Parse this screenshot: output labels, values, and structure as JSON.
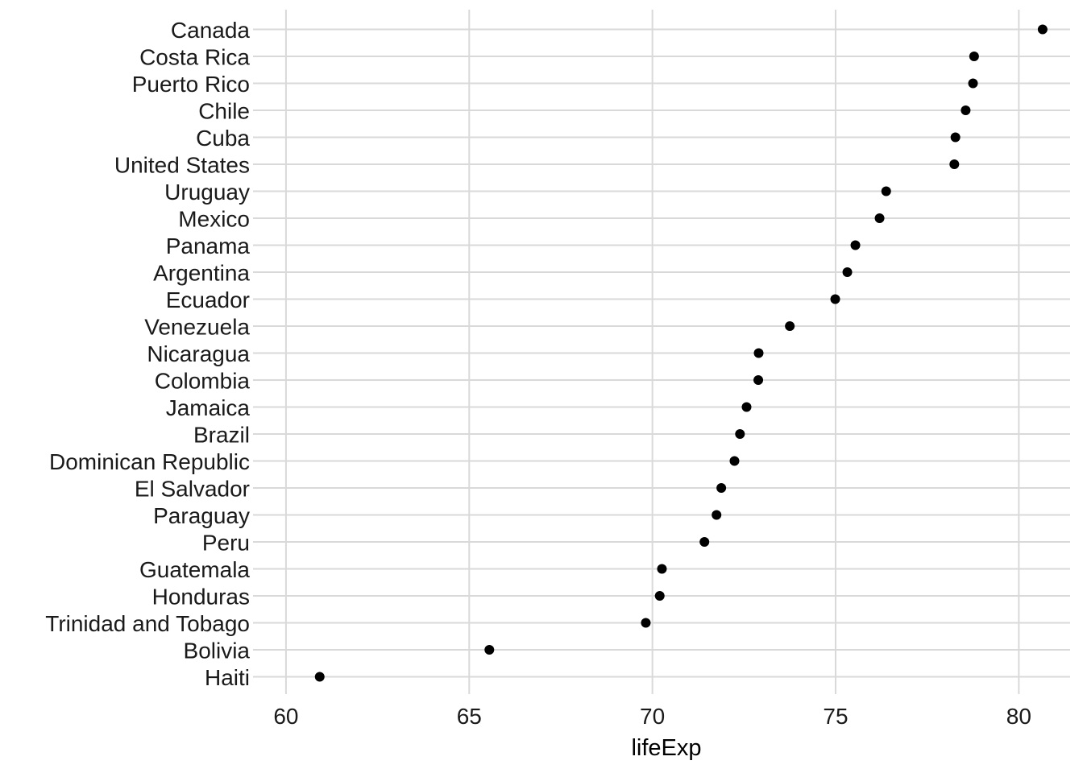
{
  "chart_data": {
    "type": "scatter",
    "title": "",
    "xlabel": "lifeExp",
    "ylabel": "",
    "xlim": [
      59.1,
      81.4
    ],
    "x_ticks": [
      "60",
      "65",
      "70",
      "75",
      "80"
    ],
    "grid": true,
    "legend": "none",
    "point_color": "#000000",
    "grid_color": "#d9d9d9",
    "categories": [
      "Canada",
      "Costa Rica",
      "Puerto Rico",
      "Chile",
      "Cuba",
      "United States",
      "Uruguay",
      "Mexico",
      "Panama",
      "Argentina",
      "Ecuador",
      "Venezuela",
      "Nicaragua",
      "Colombia",
      "Jamaica",
      "Brazil",
      "Dominican Republic",
      "El Salvador",
      "Paraguay",
      "Peru",
      "Guatemala",
      "Honduras",
      "Trinidad and Tobago",
      "Bolivia",
      "Haiti"
    ],
    "values": [
      80.65,
      78.78,
      78.75,
      78.55,
      78.27,
      78.24,
      76.38,
      76.2,
      75.54,
      75.32,
      74.99,
      73.75,
      72.9,
      72.89,
      72.57,
      72.39,
      72.24,
      71.88,
      71.75,
      71.42,
      70.26,
      70.2,
      69.82,
      65.55,
      60.92
    ]
  }
}
